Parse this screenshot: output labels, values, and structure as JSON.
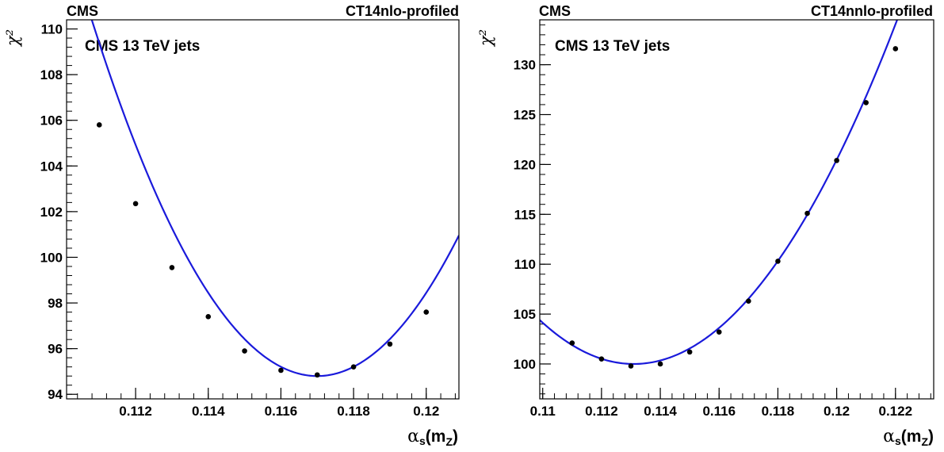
{
  "chart_data": [
    {
      "type": "scatter",
      "experiment": "CMS",
      "pdf_set": "CT14nlo-profiled",
      "annotation": "CMS 13 TeV jets",
      "ylabel": "χ²",
      "xlabel": "α_s(m_Z)",
      "xlim": [
        0.1101,
        0.1209
      ],
      "ylim": [
        93.8,
        110.4
      ],
      "xticks": [
        "0.112",
        "0.114",
        "0.116",
        "0.118",
        "0.12"
      ],
      "xtick_values": [
        0.112,
        0.114,
        0.116,
        0.118,
        0.12
      ],
      "yticks": [
        "94",
        "96",
        "98",
        "100",
        "102",
        "104",
        "106",
        "108",
        "110"
      ],
      "ytick_values": [
        94,
        96,
        98,
        100,
        102,
        104,
        106,
        108,
        110
      ],
      "points": {
        "x": [
          0.111,
          0.112,
          0.113,
          0.114,
          0.115,
          0.116,
          0.117,
          0.118,
          0.119,
          0.12
        ],
        "y": [
          105.8,
          102.35,
          99.55,
          97.4,
          95.9,
          95.05,
          94.85,
          95.2,
          96.2,
          97.6
        ]
      },
      "fit": {
        "type": "quadratic",
        "x_min": 117.0,
        "chi2_min": 94.8,
        "curvature": 0.405,
        "x_scale": 0.001
      },
      "grid": false,
      "colors": {
        "points": "#000000",
        "fit": "#1a1adb"
      }
    },
    {
      "type": "scatter",
      "experiment": "CMS",
      "pdf_set": "CT14nnlo-profiled",
      "annotation": "CMS 13 TeV jets",
      "ylabel": "χ²",
      "xlabel": "α_s(m_Z)",
      "xlim": [
        0.1099,
        0.1233
      ],
      "ylim": [
        96.5,
        134.5
      ],
      "xticks": [
        "0.11",
        "0.112",
        "0.114",
        "0.116",
        "0.118",
        "0.12",
        "0.122"
      ],
      "xtick_values": [
        0.11,
        0.112,
        0.114,
        0.116,
        0.118,
        0.12,
        0.122
      ],
      "yticks": [
        "100",
        "105",
        "110",
        "115",
        "120",
        "125",
        "130"
      ],
      "ytick_values": [
        100,
        105,
        110,
        115,
        120,
        125,
        130
      ],
      "points": {
        "x": [
          0.111,
          0.112,
          0.113,
          0.114,
          0.115,
          0.116,
          0.117,
          0.118,
          0.119,
          0.12,
          0.121,
          0.122
        ],
        "y": [
          102.1,
          100.5,
          99.8,
          100.0,
          101.2,
          103.2,
          106.3,
          110.3,
          115.1,
          120.4,
          126.2,
          131.6
        ]
      },
      "fit": {
        "type": "quadratic",
        "x_min": 113.1,
        "chi2_min": 100.0,
        "curvature": 0.43,
        "x_scale": 0.001
      },
      "grid": false,
      "colors": {
        "points": "#000000",
        "fit": "#1a1adb"
      }
    }
  ]
}
